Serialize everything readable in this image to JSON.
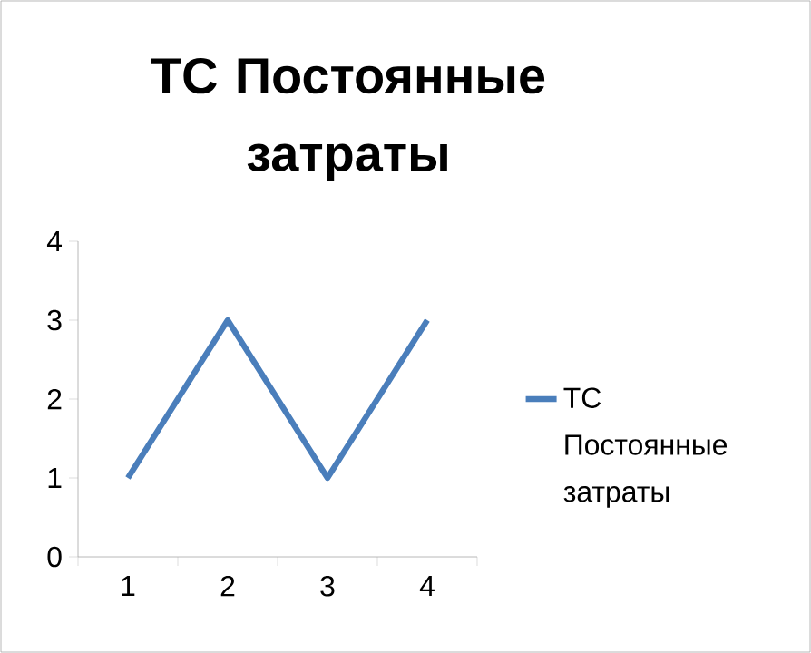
{
  "chart_data": {
    "type": "line",
    "title": "ТС Постоянные затраты",
    "categories": [
      "1",
      "2",
      "3",
      "4"
    ],
    "series": [
      {
        "name": "ТС Постоянные затраты",
        "color": "#4a7ebb",
        "values": [
          1,
          3,
          1,
          3
        ]
      }
    ],
    "ylim": [
      0,
      4
    ],
    "yticks": [
      0,
      1,
      2,
      3,
      4
    ],
    "grid": false,
    "legend": "right",
    "marker": "none",
    "line_style": "solid"
  }
}
